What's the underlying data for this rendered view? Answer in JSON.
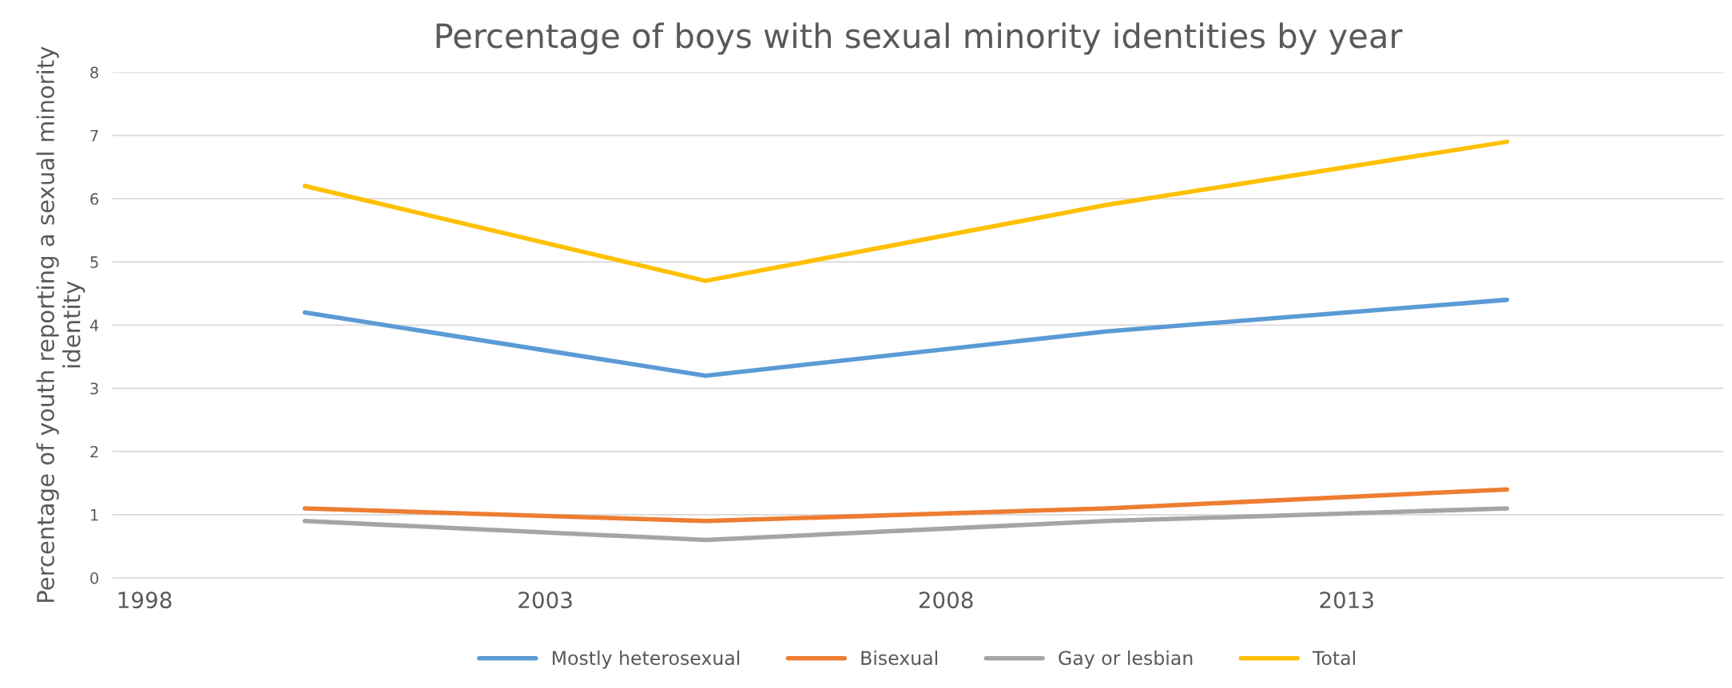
{
  "chart_data": {
    "type": "line",
    "title": "Percentage of boys with sexual minority identities by year",
    "ylabel": "Percentage of youth reporting a sexual minority identity",
    "x": [
      2000,
      2005,
      2010,
      2015
    ],
    "series": [
      {
        "name": "Mostly heterosexual",
        "color": "#5b9bd5",
        "values": [
          4.2,
          3.2,
          3.9,
          4.4
        ]
      },
      {
        "name": "Bisexual",
        "color": "#ed7d31",
        "values": [
          1.1,
          0.9,
          1.1,
          1.4
        ]
      },
      {
        "name": "Gay or lesbian",
        "color": "#a5a5a5",
        "values": [
          0.9,
          0.6,
          0.9,
          1.1
        ]
      },
      {
        "name": "Total",
        "color": "#ffc000",
        "values": [
          6.2,
          4.7,
          5.9,
          6.9
        ]
      }
    ],
    "xlim": [
      1997.6,
      2017.7
    ],
    "xticks": [
      1998,
      2003,
      2008,
      2013
    ],
    "ylim": [
      0,
      8
    ],
    "yticks": [
      0,
      1,
      2,
      3,
      4,
      5,
      6,
      7,
      8
    ],
    "grid": "y",
    "legend": "bottom",
    "marker": "none",
    "line_style": "solid"
  }
}
